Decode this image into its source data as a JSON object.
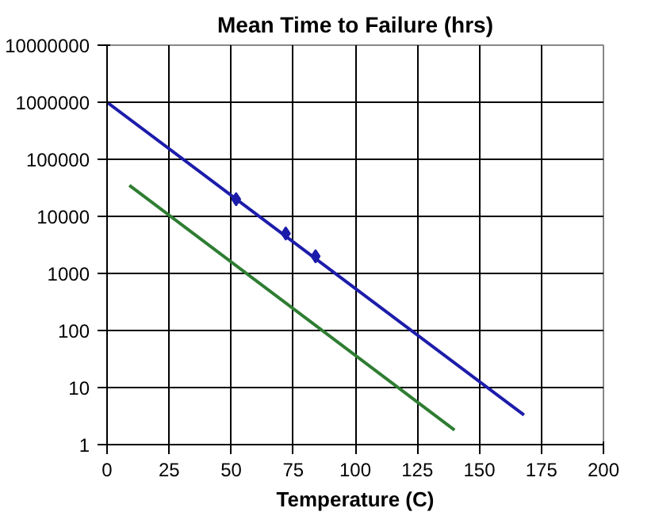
{
  "chart_data": {
    "type": "line",
    "title": "Mean Time to Failure (hrs)",
    "xlabel": "Temperature (C)",
    "series": [
      {
        "color": "#1c1caa",
        "x": [
          0,
          168
        ],
        "values": [
          1000000,
          3.3
        ]
      },
      {
        "type": "scatter",
        "color": "#1c1caa",
        "x": [
          52,
          72,
          84
        ],
        "values": [
          20000,
          5000,
          2000
        ],
        "marker": "diamond"
      },
      {
        "color": "#2e7d32",
        "x": [
          9,
          140
        ],
        "values": [
          35000,
          1.8
        ]
      }
    ],
    "xlim": [
      0,
      200
    ],
    "xticks": [
      0,
      25,
      50,
      75,
      100,
      125,
      150,
      175,
      200
    ],
    "ylim": [
      1,
      10000000
    ],
    "yticks": [
      1,
      10,
      100,
      1000,
      10000,
      100000,
      1000000,
      10000000
    ],
    "log": "y",
    "grid": true
  }
}
